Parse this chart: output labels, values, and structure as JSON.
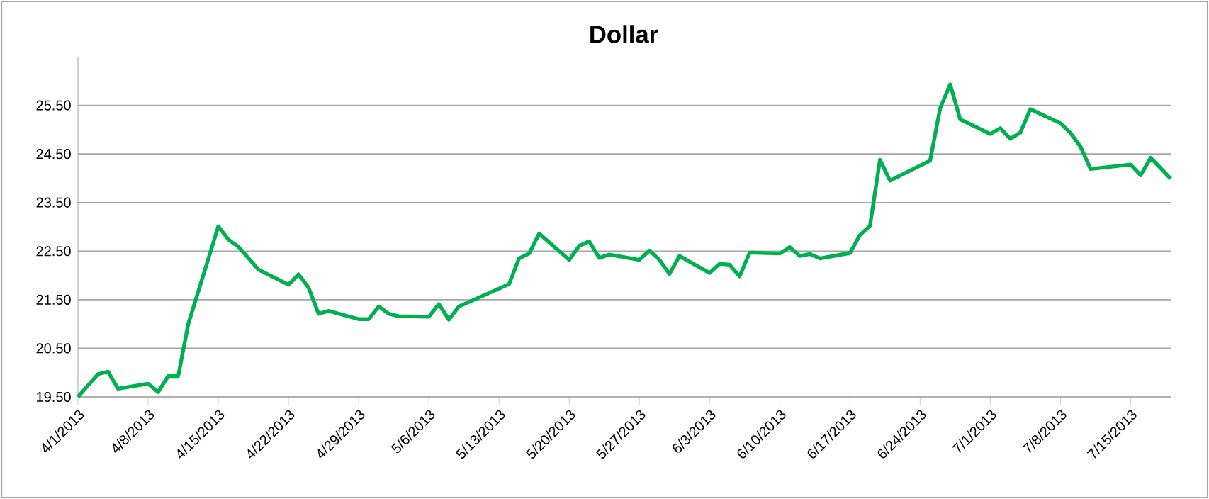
{
  "chart_data": {
    "type": "line",
    "title": "Dollar",
    "color": "#00b050",
    "grid": "y",
    "marker": "none",
    "line_style": "solid",
    "x": [
      "2013-04-01",
      "2013-04-03",
      "2013-04-04",
      "2013-04-05",
      "2013-04-08",
      "2013-04-09",
      "2013-04-10",
      "2013-04-11",
      "2013-04-12",
      "2013-04-15",
      "2013-04-16",
      "2013-04-17",
      "2013-04-19",
      "2013-04-22",
      "2013-04-23",
      "2013-04-24",
      "2013-04-25",
      "2013-04-26",
      "2013-04-29",
      "2013-04-30",
      "2013-05-01",
      "2013-05-02",
      "2013-05-03",
      "2013-05-06",
      "2013-05-07",
      "2013-05-08",
      "2013-05-09",
      "2013-05-14",
      "2013-05-15",
      "2013-05-16",
      "2013-05-17",
      "2013-05-20",
      "2013-05-21",
      "2013-05-22",
      "2013-05-23",
      "2013-05-24",
      "2013-05-27",
      "2013-05-28",
      "2013-05-29",
      "2013-05-30",
      "2013-05-31",
      "2013-06-03",
      "2013-06-04",
      "2013-06-05",
      "2013-06-06",
      "2013-06-07",
      "2013-06-10",
      "2013-06-11",
      "2013-06-12",
      "2013-06-13",
      "2013-06-14",
      "2013-06-17",
      "2013-06-18",
      "2013-06-19",
      "2013-06-20",
      "2013-06-21",
      "2013-06-25",
      "2013-06-26",
      "2013-06-27",
      "2013-06-28",
      "2013-07-01",
      "2013-07-02",
      "2013-07-03",
      "2013-07-04",
      "2013-07-05",
      "2013-07-08",
      "2013-07-09",
      "2013-07-10",
      "2013-07-11",
      "2013-07-15",
      "2013-07-16",
      "2013-07-17",
      "2013-07-19"
    ],
    "values": [
      19.5,
      19.97,
      20.02,
      19.67,
      19.77,
      19.6,
      19.93,
      19.93,
      21.0,
      23.01,
      22.74,
      22.59,
      22.12,
      21.81,
      22.02,
      21.75,
      21.21,
      21.27,
      21.1,
      21.1,
      21.36,
      21.21,
      21.16,
      21.15,
      21.41,
      21.09,
      21.36,
      21.82,
      22.35,
      22.45,
      22.86,
      22.32,
      22.61,
      22.7,
      22.36,
      22.43,
      22.32,
      22.51,
      22.32,
      22.03,
      22.4,
      22.05,
      22.24,
      22.22,
      21.98,
      22.47,
      22.45,
      22.58,
      22.4,
      22.44,
      22.35,
      22.46,
      22.83,
      23.02,
      24.38,
      23.95,
      24.36,
      25.44,
      25.93,
      25.21,
      24.91,
      25.03,
      24.81,
      24.94,
      25.42,
      25.13,
      24.93,
      24.65,
      24.19,
      24.28,
      24.06,
      24.42,
      23.99
    ],
    "xlim": [
      "2013-04-01",
      "2013-07-19"
    ],
    "xticks": [
      {
        "value": "2013-04-01",
        "label": "4/1/2013"
      },
      {
        "value": "2013-04-08",
        "label": "4/8/2013"
      },
      {
        "value": "2013-04-15",
        "label": "4/15/2013"
      },
      {
        "value": "2013-04-22",
        "label": "4/22/2013"
      },
      {
        "value": "2013-04-29",
        "label": "4/29/2013"
      },
      {
        "value": "2013-05-06",
        "label": "5/6/2013"
      },
      {
        "value": "2013-05-13",
        "label": "5/13/2013"
      },
      {
        "value": "2013-05-20",
        "label": "5/20/2013"
      },
      {
        "value": "2013-05-27",
        "label": "5/27/2013"
      },
      {
        "value": "2013-06-03",
        "label": "6/3/2013"
      },
      {
        "value": "2013-06-10",
        "label": "6/10/2013"
      },
      {
        "value": "2013-06-17",
        "label": "6/17/2013"
      },
      {
        "value": "2013-06-24",
        "label": "6/24/2013"
      },
      {
        "value": "2013-07-01",
        "label": "7/1/2013"
      },
      {
        "value": "2013-07-08",
        "label": "7/8/2013"
      },
      {
        "value": "2013-07-15",
        "label": "7/15/2013"
      }
    ],
    "ylim": [
      19.5,
      26.5
    ],
    "yticks": [
      {
        "value": 19.5,
        "label": "19.50"
      },
      {
        "value": 20.5,
        "label": "20.50"
      },
      {
        "value": 21.5,
        "label": "21.50"
      },
      {
        "value": 22.5,
        "label": "22.50"
      },
      {
        "value": 23.5,
        "label": "23.50"
      },
      {
        "value": 24.5,
        "label": "24.50"
      },
      {
        "value": 25.5,
        "label": "25.50"
      }
    ]
  }
}
